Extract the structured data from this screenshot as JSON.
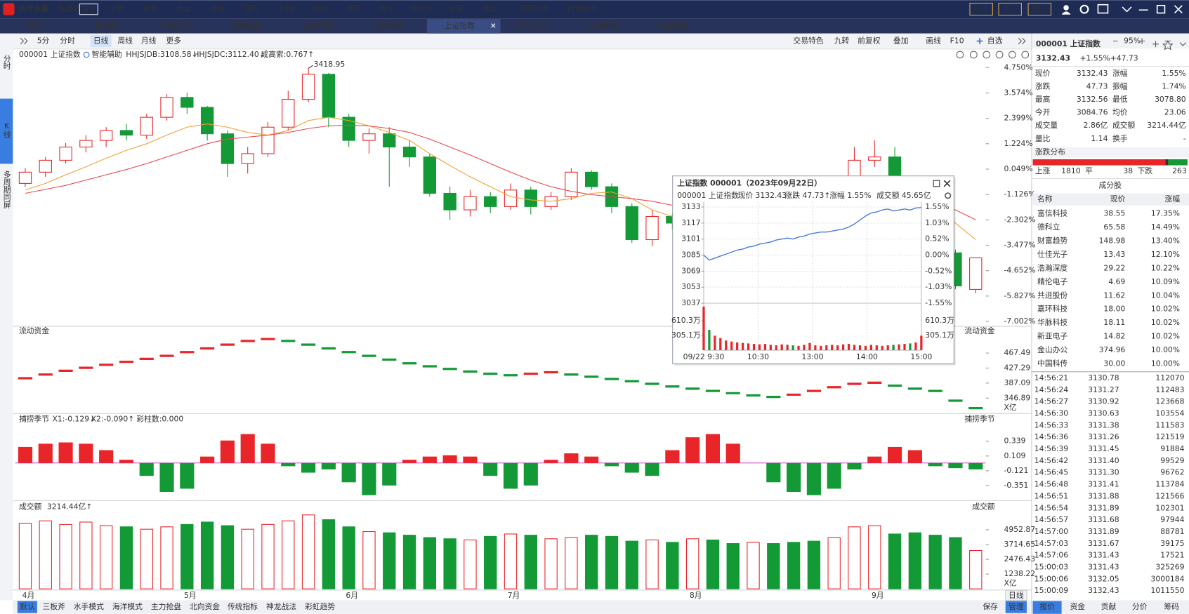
{
  "colors": {
    "up": "#e8262a",
    "down": "#139a36"
  },
  "app": {
    "logo": "经传多赢",
    "edition": "智尊版",
    "mode": "演示",
    "menu": [
      "行情",
      "基金",
      "大盘",
      "选股",
      "短打",
      "机构",
      "价投",
      "数据",
      "资讯",
      "研究院",
      "交易",
      "增值",
      "主题猎手",
      "舆情猎手"
    ],
    "right_buttons": [
      "热点",
      "学习",
      "圈子"
    ],
    "zoom": "95%"
  },
  "tabs": {
    "items": [
      "首页",
      "自选股",
      "综合排名",
      "超级复盘",
      "主题精选",
      "涨停棱镜",
      "上证指数",
      "学习营地",
      "主题策略",
      "精品课程"
    ],
    "active": 6
  },
  "sidebar": {
    "items": [
      "分时",
      "K线",
      "多周期同屏"
    ],
    "active": 1
  },
  "toolbar": {
    "left": [
      "5分",
      "分时",
      "日线",
      "周线",
      "月线",
      "更多"
    ],
    "active": 2,
    "right": [
      "交易特色",
      "九转",
      "前复权",
      "叠加",
      "画线",
      "F10",
      "自选"
    ]
  },
  "kline": {
    "name": "000001 上证指数",
    "assist": "智能辅助",
    "indicators": [
      {
        "text": "HHJSJDB:3108.58↓",
        "color": "#e08a00"
      },
      {
        "text": "HHJSJDC:3112.40↓",
        "color": "#e8262a"
      },
      {
        "text": "成高索:0.767↑",
        "color": "#e08a00"
      }
    ],
    "annotation": "3418.95",
    "candles": [
      [
        3245,
        3262,
        3268,
        3240
      ],
      [
        3262,
        3280,
        3285,
        3255
      ],
      [
        3280,
        3300,
        3306,
        3275
      ],
      [
        3300,
        3310,
        3318,
        3292
      ],
      [
        3310,
        3325,
        3330,
        3300
      ],
      [
        3325,
        3318,
        3335,
        3310
      ],
      [
        3318,
        3345,
        3350,
        3312
      ],
      [
        3345,
        3375,
        3380,
        3340
      ],
      [
        3375,
        3360,
        3382,
        3350
      ],
      [
        3360,
        3320,
        3362,
        3310
      ],
      [
        3320,
        3275,
        3325,
        3255
      ],
      [
        3275,
        3290,
        3300,
        3260
      ],
      [
        3290,
        3330,
        3338,
        3285
      ],
      [
        3330,
        3372,
        3385,
        3325
      ],
      [
        3372,
        3410,
        3418.95,
        3368
      ],
      [
        3410,
        3345,
        3412,
        3330
      ],
      [
        3345,
        3310,
        3350,
        3300
      ],
      [
        3310,
        3320,
        3328,
        3290
      ],
      [
        3320,
        3300,
        3330,
        3240
      ],
      [
        3300,
        3285,
        3310,
        3270
      ],
      [
        3285,
        3230,
        3290,
        3225
      ],
      [
        3230,
        3205,
        3240,
        3190
      ],
      [
        3205,
        3225,
        3235,
        3195
      ],
      [
        3225,
        3210,
        3232,
        3200
      ],
      [
        3210,
        3235,
        3245,
        3205
      ],
      [
        3235,
        3210,
        3240,
        3198
      ],
      [
        3210,
        3225,
        3232,
        3205
      ],
      [
        3225,
        3262,
        3268,
        3220
      ],
      [
        3262,
        3240,
        3265,
        3235
      ],
      [
        3240,
        3210,
        3245,
        3200
      ],
      [
        3210,
        3160,
        3215,
        3155
      ],
      [
        3160,
        3195,
        3205,
        3150
      ],
      [
        3195,
        3185,
        3200,
        3175
      ],
      [
        3185,
        3240,
        3245,
        3180
      ],
      [
        3240,
        3220,
        3248,
        3215
      ],
      [
        3220,
        3205,
        3228,
        3200
      ],
      [
        3205,
        3230,
        3238,
        3198
      ],
      [
        3230,
        3215,
        3240,
        3210
      ],
      [
        3215,
        3200,
        3222,
        3175
      ],
      [
        3200,
        3165,
        3205,
        3160
      ],
      [
        3165,
        3200,
        3215,
        3160
      ],
      [
        3200,
        3280,
        3300,
        3195
      ],
      [
        3280,
        3285,
        3310,
        3270
      ],
      [
        3285,
        3250,
        3300,
        3240
      ],
      [
        3250,
        3200,
        3255,
        3190
      ],
      [
        3200,
        3140,
        3205,
        3130
      ],
      [
        3140,
        3090,
        3145,
        3085
      ],
      [
        3084.76,
        3132.43,
        3132.56,
        3078.8
      ]
    ],
    "ma": [
      [
        3235,
        3245,
        3258,
        3270,
        3283,
        3295,
        3305,
        3318,
        3330,
        3335,
        3330,
        3322,
        3318,
        3325,
        3340,
        3345,
        3340,
        3332,
        3322,
        3310,
        3290,
        3272,
        3255,
        3240,
        3225,
        3220,
        3218,
        3222,
        3230,
        3232,
        3222,
        3205,
        3195,
        3190,
        3198,
        3205,
        3210,
        3215,
        3215,
        3205,
        3195,
        3205,
        3225,
        3240,
        3235,
        3215,
        3185,
        3160
      ],
      [
        3230,
        3236,
        3242,
        3250,
        3258,
        3266,
        3275,
        3285,
        3295,
        3305,
        3312,
        3315,
        3318,
        3322,
        3328,
        3332,
        3333,
        3332,
        3328,
        3322,
        3312,
        3300,
        3288,
        3275,
        3262,
        3250,
        3240,
        3233,
        3228,
        3225,
        3222,
        3218,
        3212,
        3208,
        3206,
        3205,
        3204,
        3205,
        3206,
        3205,
        3202,
        3203,
        3210,
        3218,
        3220,
        3215,
        3205,
        3190
      ]
    ],
    "ma_colors": [
      "#f0a030",
      "#e8474c"
    ],
    "ylim": [
      3036.4,
      3420.1
    ],
    "yticks": [
      {
        "value": 3420.1,
        "label": "4.750%"
      },
      {
        "value": 3381.7,
        "label": "3.574%"
      },
      {
        "value": 3343.3,
        "label": "2.399%"
      },
      {
        "value": 3305.0,
        "label": "1.224%"
      },
      {
        "value": 3266.6,
        "label": "0.049%"
      },
      {
        "value": 3228.2,
        "label": "-1.126%"
      },
      {
        "value": 3189.8,
        "label": "-2.302%"
      },
      {
        "value": 3151.5,
        "label": "-3.477%"
      },
      {
        "value": 3113.1,
        "label": "-4.652%"
      },
      {
        "value": 3074.7,
        "label": "-5.827%"
      },
      {
        "value": 3036.4,
        "label": "-7.002%"
      }
    ],
    "categories": [
      "4月",
      null,
      null,
      null,
      null,
      null,
      null,
      null,
      "5月",
      null,
      null,
      null,
      null,
      null,
      null,
      null,
      "6月",
      null,
      null,
      null,
      null,
      null,
      null,
      null,
      "7月",
      null,
      null,
      null,
      null,
      null,
      null,
      null,
      null,
      "8月",
      null,
      null,
      null,
      null,
      null,
      null,
      null,
      null,
      "9月",
      null,
      null,
      null,
      null,
      null
    ]
  },
  "flow": {
    "title": "流动资金",
    "values": [
      400,
      410,
      420,
      428,
      436,
      444,
      452,
      460,
      470,
      480,
      490,
      500,
      505,
      500,
      490,
      480,
      470,
      460,
      450,
      440,
      432,
      425,
      418,
      412,
      408,
      412,
      416,
      410,
      404,
      398,
      392,
      385,
      378,
      372,
      366,
      360,
      354,
      350,
      356,
      366,
      376,
      385,
      388,
      380,
      372,
      366,
      340,
      320
    ],
    "ylim": [
      306.7,
      509.7
    ],
    "yticks": [
      467.49,
      427.29,
      387.09,
      346.89
    ],
    "unit": "X亿"
  },
  "macd": {
    "title": "捕捞季节",
    "labels": [
      {
        "text": "X1:-0.129↓",
        "color": "#e08a00"
      },
      {
        "text": "X2:-0.090↑",
        "color": "#d020d0"
      },
      {
        "text": "彩柱数:0.000",
        "color": "#139a36"
      }
    ],
    "values": [
      0.25,
      0.3,
      0.32,
      0.3,
      0.2,
      0.05,
      -0.2,
      -0.45,
      -0.4,
      0.1,
      0.35,
      0.45,
      0.3,
      -0.05,
      -0.15,
      -0.1,
      -0.3,
      -0.5,
      -0.35,
      0.05,
      0.1,
      0.12,
      0.1,
      -0.2,
      -0.4,
      -0.35,
      0.05,
      0.15,
      0.1,
      -0.05,
      -0.15,
      -0.2,
      0.2,
      0.4,
      0.45,
      0.3,
      0.0,
      -0.3,
      -0.45,
      -0.5,
      -0.4,
      -0.1,
      0.1,
      0.25,
      0.2,
      -0.05,
      -0.08,
      -0.1
    ],
    "ylim": [
      -0.52,
      0.6
    ],
    "yticks": [
      0.339,
      0.109,
      -0.121,
      -0.351
    ]
  },
  "volume": {
    "title": "成交额",
    "total": "3214.44亿↑",
    "values": [
      5500,
      5700,
      5400,
      5600,
      5300,
      5200,
      5000,
      5200,
      5400,
      5600,
      5300,
      5000,
      5400,
      5700,
      6200,
      5800,
      5200,
      4800,
      4700,
      4500,
      4300,
      4200,
      4100,
      4400,
      4600,
      4500,
      4200,
      4300,
      4500,
      4400,
      4000,
      4100,
      3900,
      4200,
      4100,
      3800,
      3900,
      3800,
      3900,
      4000,
      4300,
      5200,
      5300,
      4600,
      4700,
      4500,
      4300,
      3214.44
    ],
    "ylim": [
      0,
      6480
    ],
    "yticks": [
      4952.87,
      3714.65,
      2476.43,
      1238.22
    ],
    "unit": "X亿"
  },
  "bottom_tabs": {
    "items": [
      "默认",
      "三板斧",
      "水手模式",
      "海洋模式",
      "主力抢盘",
      "北向资金",
      "传统指标",
      "神龙战法",
      "彩虹趋势"
    ],
    "active": 0,
    "right": [
      "保存",
      "管理"
    ],
    "period": "日线"
  },
  "popup": {
    "title": "上证指数 000001（2023年09月22日）",
    "name": "000001 上证指数",
    "stats": [
      {
        "text": "现价 3132.43",
        "color": "#e8262a"
      },
      {
        "text": "涨跌 47.73↑",
        "color": "#e8262a"
      },
      {
        "text": "涨幅 1.55%",
        "color": "#e8262a"
      },
      {
        "text": "成交额 45.65亿",
        "color": "#333333"
      }
    ],
    "price": {
      "values": [
        3085,
        3080,
        3082,
        3084,
        3086,
        3088,
        3090,
        3091,
        3093,
        3094,
        3096,
        3097,
        3098,
        3100,
        3101,
        3102,
        3101,
        3103,
        3104,
        3106,
        3107,
        3108,
        3108,
        3109,
        3110,
        3111,
        3113,
        3116,
        3120,
        3124,
        3127,
        3128,
        3130,
        3131,
        3129,
        3130,
        3131,
        3130,
        3132,
        3132.43
      ],
      "color": "#4a7bd8",
      "ylim": [
        3037,
        3133
      ],
      "yticks": [
        3133,
        3117,
        3101,
        3085,
        3069,
        3053,
        3037
      ],
      "y2lim": [
        -1.55,
        1.55
      ],
      "y2ticks": [
        {
          "value": 1.55,
          "label": "1.55%"
        },
        {
          "value": 1.03,
          "label": "1.03%"
        },
        {
          "value": 0.52,
          "label": "0.52%"
        },
        {
          "value": 0,
          "label": "0.00%"
        },
        {
          "value": -0.52,
          "label": "-0.52%"
        },
        {
          "value": -1.03,
          "label": "-1.03%"
        },
        {
          "value": -1.55,
          "label": "-1.55%"
        }
      ]
    },
    "volume": {
      "values": [
        900,
        420,
        300,
        250,
        200,
        180,
        160,
        150,
        140,
        130,
        120,
        130,
        110,
        100,
        120,
        110,
        100,
        90,
        110,
        150,
        100,
        90,
        100,
        110,
        100,
        120,
        130,
        110,
        100,
        90,
        110,
        100,
        90,
        100,
        110,
        120,
        130,
        140,
        160,
        300
      ],
      "ylim": [
        0,
        970
      ],
      "yticks": [
        {
          "value": 610.3,
          "label": "610.3万"
        },
        {
          "value": 305.1,
          "label": "305.1万"
        }
      ]
    },
    "times": [
      "09/22 9:30",
      "10:30",
      "13:00",
      "14:00",
      "15:00"
    ]
  },
  "quote": {
    "code": "000001 上证指数",
    "price": "3132.43",
    "pct": "+1.55%",
    "chg": "+47.73",
    "rows": [
      [
        {
          "label": "现价",
          "value": "3132.43",
          "color": "#e8262a"
        },
        {
          "label": "涨幅",
          "value": "1.55%",
          "color": "#e8262a"
        }
      ],
      [
        {
          "label": "涨跌",
          "value": "47.73",
          "color": "#e8262a"
        },
        {
          "label": "振幅",
          "value": "1.74%",
          "color": "#222222"
        }
      ],
      [
        {
          "label": "最高",
          "value": "3132.56",
          "color": "#e8262a"
        },
        {
          "label": "最低",
          "value": "3078.80",
          "color": "#139a36"
        }
      ],
      [
        {
          "label": "今开",
          "value": "3084.76",
          "color": "#e8262a"
        },
        {
          "label": "均价",
          "value": "23.06",
          "color": "#139a36"
        }
      ],
      [
        {
          "label": "成交量",
          "value": "2.86亿",
          "color": "#222222"
        },
        {
          "label": "成交额",
          "value": "3214.44亿",
          "color": "#222222"
        }
      ],
      [
        {
          "label": "量比",
          "value": "1.14",
          "color": "#222222"
        },
        {
          "label": "换手",
          "value": "-",
          "color": "#222222"
        }
      ]
    ],
    "distribution": {
      "title": "涨跌分布",
      "up_label": "上涨",
      "up": 1810,
      "flat_label": "平",
      "flat": 38,
      "down_label": "下跌",
      "down": 263
    },
    "components": {
      "title": "成分股",
      "columns": [
        "名称",
        "现价",
        "涨幅"
      ],
      "rows": [
        [
          "富信科技",
          "38.55",
          "17.35%"
        ],
        [
          "德科立",
          "65.58",
          "14.49%"
        ],
        [
          "财富趋势",
          "148.98",
          "13.40%"
        ],
        [
          "仕佳光子",
          "13.43",
          "12.10%"
        ],
        [
          "浩瀚深度",
          "29.22",
          "10.22%"
        ],
        [
          "精伦电子",
          "4.69",
          "10.09%"
        ],
        [
          "共进股份",
          "11.62",
          "10.04%"
        ],
        [
          "嘉环科技",
          "18.00",
          "10.02%"
        ],
        [
          "华脉科技",
          "18.11",
          "10.02%"
        ],
        [
          "新亚电子",
          "14.82",
          "10.02%"
        ],
        [
          "金山办公",
          "374.96",
          "10.00%"
        ],
        [
          "中国科传",
          "30.00",
          "10.00%"
        ]
      ]
    },
    "trades": [
      [
        "14:56:21",
        "3130.78",
        "112070"
      ],
      [
        "14:56:24",
        "3131.27",
        "112483"
      ],
      [
        "14:56:27",
        "3130.92",
        "123668"
      ],
      [
        "14:56:30",
        "3130.63",
        "103554"
      ],
      [
        "14:56:33",
        "3131.38",
        "111583"
      ],
      [
        "14:56:36",
        "3131.26",
        "121519"
      ],
      [
        "14:56:39",
        "3131.45",
        "91884"
      ],
      [
        "14:56:42",
        "3131.40",
        "99529"
      ],
      [
        "14:56:45",
        "3131.30",
        "96762"
      ],
      [
        "14:56:48",
        "3131.41",
        "113784"
      ],
      [
        "14:56:51",
        "3131.88",
        "121566"
      ],
      [
        "14:56:54",
        "3131.89",
        "102301"
      ],
      [
        "14:56:57",
        "3131.68",
        "97944"
      ],
      [
        "14:57:00",
        "3131.89",
        "88781"
      ],
      [
        "14:57:03",
        "3131.67",
        "39175"
      ],
      [
        "14:57:06",
        "3131.43",
        "17521"
      ],
      [
        "15:00:03",
        "3131.43",
        "325269"
      ],
      [
        "15:00:06",
        "3132.05",
        "3000184"
      ],
      [
        "15:00:09",
        "3132.43",
        "1011550"
      ]
    ],
    "tabs": [
      "报价",
      "资金",
      "贡献",
      "分价",
      "筹码"
    ],
    "active_tab": 0
  }
}
